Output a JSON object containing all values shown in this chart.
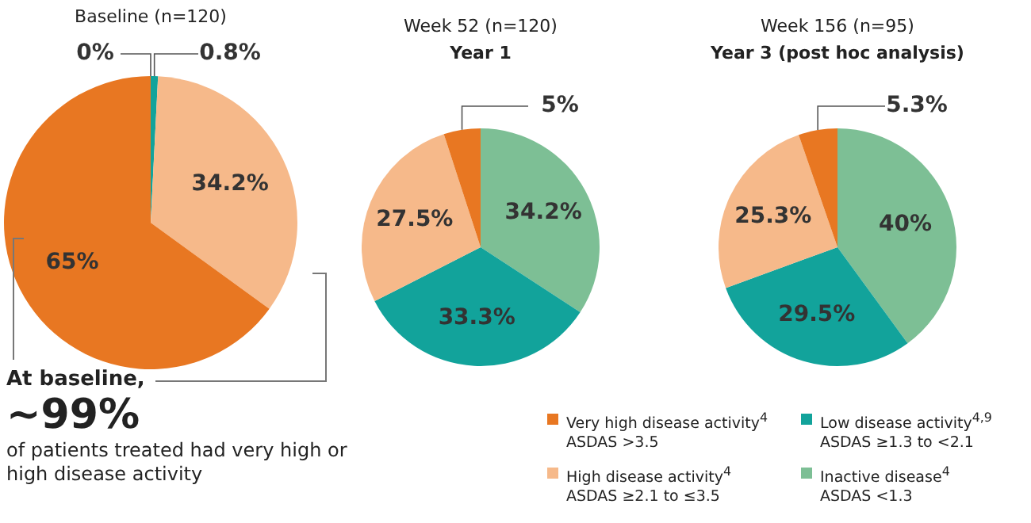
{
  "chart_data": [
    {
      "type": "pie",
      "title": "Baseline (n=120)",
      "categories": [
        "Inactive disease$^{4}$\nASDAS <1.3",
        "Low disease activity$^{4,9}$\nASDAS ≥1.3 to <2.1",
        "High disease activity$^{4}$\nASDAS ≥2.1 to ≤3.5",
        "Very high disease activity$^{4}$\nASDAS >3.5"
      ],
      "values": [
        0,
        0.8,
        34.2,
        65
      ],
      "colors": [
        "#7dbf95",
        "#12a39b",
        "#f6b98a",
        "#e87722"
      ],
      "value_labels": [
        "0%",
        "0.8%",
        "34.2%",
        "65%"
      ],
      "legend": "bottom right",
      "annotations": [
        "At baseline,",
        "~99%",
        "of patients treated had very high or high disease activity"
      ]
    },
    {
      "type": "pie",
      "title": "Week 52 (n=120)",
      "subtitle": "Year 1",
      "categories": [
        null,
        null,
        null,
        null
      ],
      "values": [
        34.2,
        33.3,
        27.5,
        5
      ],
      "colors": [
        "#7dbf95",
        "#12a39b",
        "#f6b98a",
        "#e87722"
      ],
      "value_labels": [
        "34.2%",
        "33.3%",
        "27.5%",
        "5%"
      ]
    },
    {
      "type": "pie",
      "title": "Week 156 (n=95)",
      "subtitle": "Year 3 (post hoc analysis)",
      "categories": [
        null,
        null,
        null,
        null
      ],
      "values": [
        40,
        29.5,
        25.3,
        5.3
      ],
      "colors": [
        "#7dbf95",
        "#12a39b",
        "#f6b98a",
        "#e87722"
      ],
      "value_labels": [
        "40%",
        "29.5%",
        "25.3%",
        "5.3%"
      ]
    }
  ]
}
